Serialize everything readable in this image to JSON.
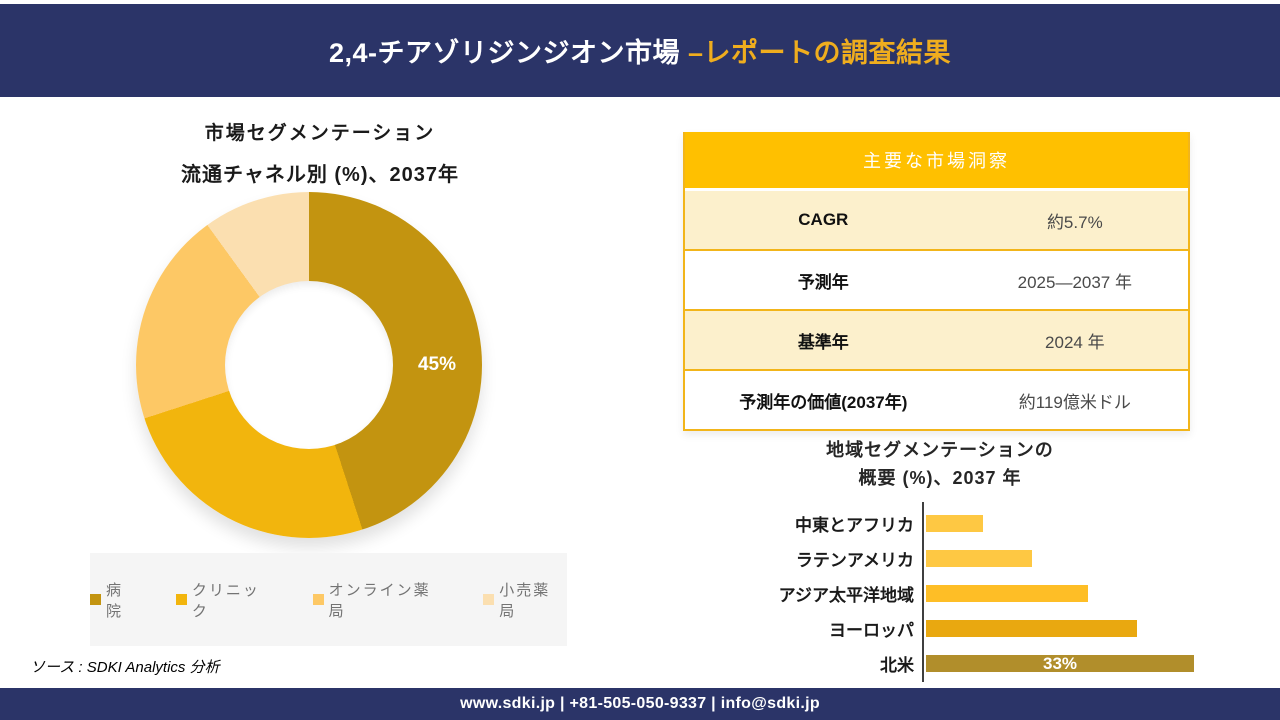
{
  "header": {
    "title_white": "2,4-チアゾリジンジオン市場 ",
    "title_gold": "–レポートの調査結果",
    "bg_color": "#2b3468",
    "gold_color": "#efad1e"
  },
  "insights_table": {
    "title": "主要な市場洞察",
    "header_bg": "#ffc000",
    "alt_row_bg": "#fcf0cc",
    "border_color": "#f2b51a",
    "rows": [
      {
        "label": "CAGR",
        "value": "約5.7%"
      },
      {
        "label": "予測年",
        "value": "2025—2037 年"
      },
      {
        "label": "基準年",
        "value": "2024 年"
      },
      {
        "label": "予測年の価値(2037年)",
        "value": "約119億米ドル"
      }
    ]
  },
  "chart_data": [
    {
      "id": "distribution-donut",
      "type": "pie",
      "subtype": "donut",
      "title_line1": "市場セグメンテーション",
      "title_line2": "流通チャネル別 (%)、2037年",
      "labels": [
        "病院",
        "クリニック",
        "オンライン薬局",
        "小売薬局"
      ],
      "values": [
        45,
        25,
        20,
        10
      ],
      "data_labels": [
        "45%",
        "",
        "",
        ""
      ],
      "colors": [
        "#c39410",
        "#f2b50d",
        "#fdc865",
        "#fbdfb0"
      ],
      "legend_position": "bottom",
      "legend_bg": "#f5f5f5"
    },
    {
      "id": "regional-bars",
      "type": "bar",
      "orientation": "horizontal",
      "title_line1": "地域セグメンテーションの",
      "title_line2": "概要 (%)、2037 年",
      "categories": [
        "中東とアフリカ",
        "ラテンアメリカ",
        "アジア太平洋地域",
        "ヨーロッパ",
        "北米"
      ],
      "values": [
        7,
        13,
        20,
        26,
        33
      ],
      "data_labels": [
        "",
        "",
        "",
        "",
        "33%"
      ],
      "colors": [
        "#fec843",
        "#fec843",
        "#febe26",
        "#e9a810",
        "#b18e2b"
      ],
      "xlim": [
        0,
        34
      ],
      "grid": false,
      "legend": false
    }
  ],
  "source_note": "ソース : SDKI Analytics 分析",
  "footer": {
    "text": "www.sdki.jp | +81-505-050-9337 | info@sdki.jp",
    "bg_color": "#2b3468"
  }
}
